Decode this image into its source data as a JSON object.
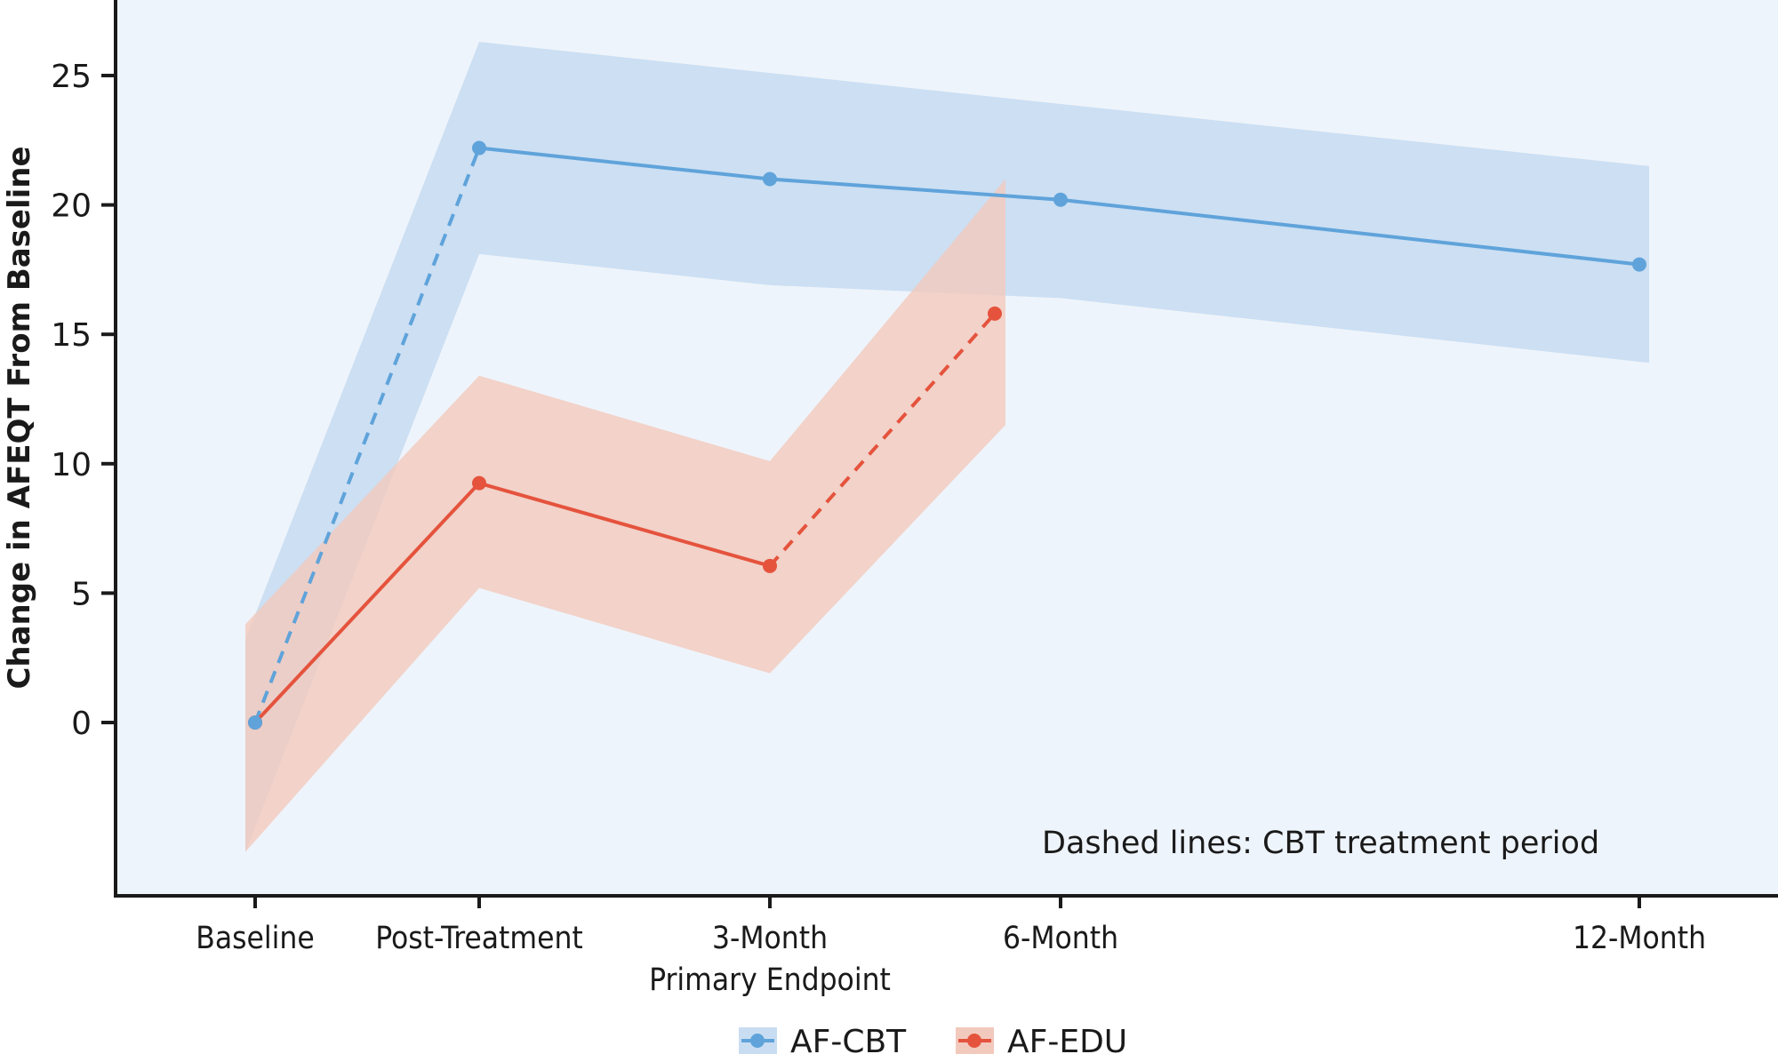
{
  "chart_data": {
    "type": "line",
    "title": "",
    "xlabel": "",
    "ylabel": "Change in AFEQT From Baseline",
    "categories": [
      "Baseline",
      "Post-Treatment",
      "3-Month",
      "6-Month",
      "12-Month"
    ],
    "category_sublabels": [
      "",
      "",
      "Primary Endpoint",
      "",
      ""
    ],
    "yticks": [
      0,
      5,
      10,
      15,
      20,
      25
    ],
    "ylim": [
      -6.6,
      28
    ],
    "grid": false,
    "legend_position": "bottom-center",
    "annotation": "Dashed lines: CBT treatment period",
    "series": [
      {
        "name": "AF-CBT",
        "color": "#5fa3da",
        "band_color": "#c9ddf2",
        "points": [
          {
            "category": "Baseline",
            "value": 0.0,
            "ci": [
              -5.0,
              3.2
            ]
          },
          {
            "category": "Post-Treatment",
            "value": 22.2,
            "ci": [
              18.1,
              26.3
            ]
          },
          {
            "category": "3-Month",
            "value": 21.0,
            "ci": [
              16.9,
              25.1
            ]
          },
          {
            "category": "6-Month",
            "value": 20.2,
            "ci": [
              16.4,
              23.9
            ]
          },
          {
            "category": "12-Month",
            "value": 17.7,
            "ci": [
              13.9,
              21.5
            ]
          }
        ],
        "dashed_segments": [
          [
            0,
            1
          ]
        ]
      },
      {
        "name": "AF-EDU",
        "color": "#e5533d",
        "band_color": "#f2c9bd",
        "points": [
          {
            "category": "Baseline",
            "value": 0.0,
            "ci": [
              -5.0,
              3.8
            ]
          },
          {
            "category": "Post-Treatment",
            "value": 9.25,
            "ci": [
              5.2,
              13.4
            ]
          },
          {
            "category": "3-Month",
            "value": 6.05,
            "ci": [
              1.9,
              10.1
            ]
          },
          {
            "category": "6-Month",
            "value": 15.8,
            "ci": [
              11.5,
              21.0
            ]
          }
        ],
        "dashed_segments": [
          [
            2,
            3
          ]
        ]
      }
    ]
  },
  "colors": {
    "plot_background": "#eef4fb",
    "axis": "#1a1a1a"
  }
}
